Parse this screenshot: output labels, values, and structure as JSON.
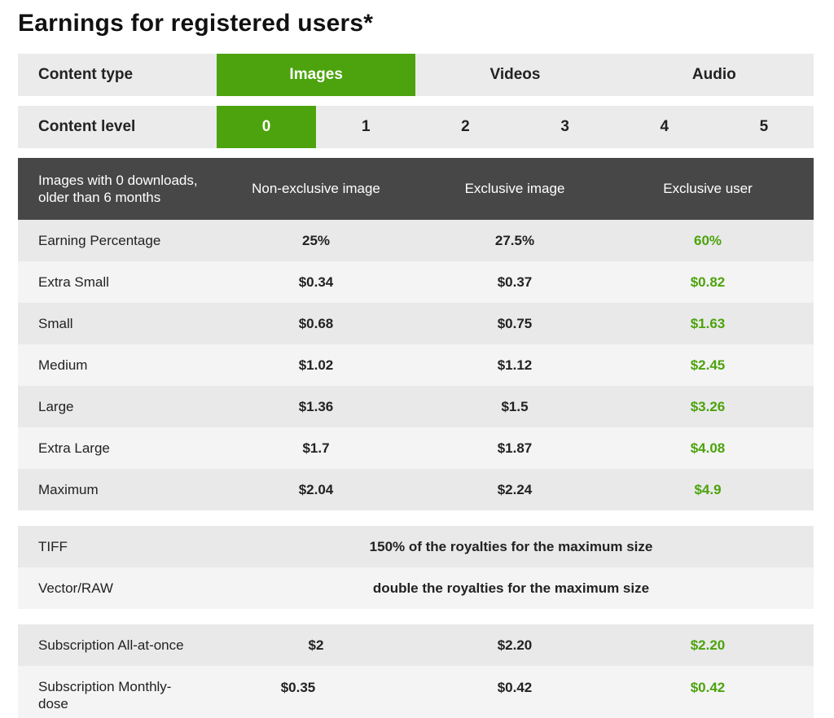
{
  "page": {
    "title": "Earnings for registered users*"
  },
  "content_type": {
    "label": "Content type",
    "options": [
      "Images",
      "Videos",
      "Audio"
    ],
    "selected": "Images"
  },
  "content_level": {
    "label": "Content level",
    "options": [
      "0",
      "1",
      "2",
      "3",
      "4",
      "5"
    ],
    "selected": "0"
  },
  "colors": {
    "accent_green": "#4ca30d",
    "header_dark": "#474747"
  },
  "earnings_table": {
    "header": {
      "label": "Images with 0 downloads, older than 6 months",
      "columns": [
        "Non-exclusive image",
        "Exclusive image",
        "Exclusive user"
      ]
    },
    "rows": [
      {
        "label": "Earning Percentage",
        "non_exclusive": "25%",
        "exclusive": "27.5%",
        "exclusive_user": "60%"
      },
      {
        "label": "Extra Small",
        "non_exclusive": "$0.34",
        "exclusive": "$0.37",
        "exclusive_user": "$0.82"
      },
      {
        "label": "Small",
        "non_exclusive": "$0.68",
        "exclusive": "$0.75",
        "exclusive_user": "$1.63"
      },
      {
        "label": "Medium",
        "non_exclusive": "$1.02",
        "exclusive": "$1.12",
        "exclusive_user": "$2.45"
      },
      {
        "label": "Large",
        "non_exclusive": "$1.36",
        "exclusive": "$1.5",
        "exclusive_user": "$3.26"
      },
      {
        "label": "Extra Large",
        "non_exclusive": "$1.7",
        "exclusive": "$1.87",
        "exclusive_user": "$4.08"
      },
      {
        "label": "Maximum",
        "non_exclusive": "$2.04",
        "exclusive": "$2.24",
        "exclusive_user": "$4.9"
      }
    ]
  },
  "format_table": {
    "rows": [
      {
        "label": "TIFF",
        "value": "150% of the royalties for the maximum size"
      },
      {
        "label": "Vector/RAW",
        "value": "double the royalties for the maximum size"
      }
    ]
  },
  "subscription_table": {
    "rows": [
      {
        "label": "Subscription All-at-once",
        "non_exclusive": "$2",
        "exclusive": "$2.20",
        "exclusive_user": "$2.20"
      },
      {
        "label": "Subscription Monthly-dose",
        "non_exclusive": "$0.35",
        "exclusive": "$0.42",
        "exclusive_user": "$0.42"
      }
    ]
  }
}
